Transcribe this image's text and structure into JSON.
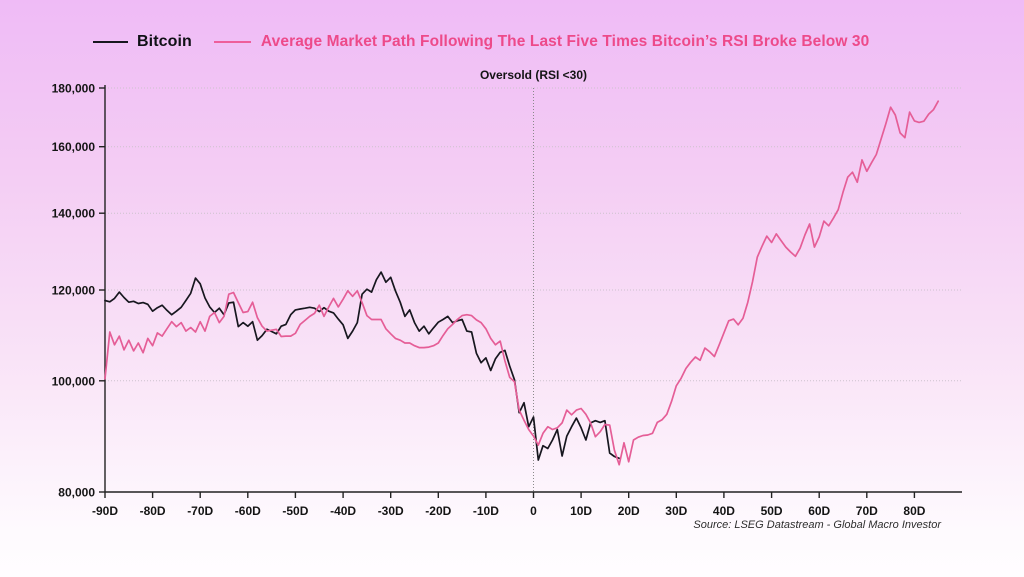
{
  "legend": {
    "bitcoin_label": "Bitcoin",
    "average_label": "Average Market Path Following The Last Five Times Bitcoin’s RSI Broke Below 30"
  },
  "chart_title": "Oversold (RSI <30)",
  "source": "Source: LSEG Datastream - Global Macro Investor",
  "colors": {
    "bitcoin_line": "#17171f",
    "average_line": "#e55e97",
    "legend_pink_text": "#ed4a8a",
    "grid": "#cdc2cd",
    "zero_line": "#8a8a8a",
    "axis": "#222222",
    "background_top": "#efbbf6",
    "background_bottom": "#fffdff"
  },
  "chart_data": {
    "type": "line",
    "title": "Oversold (RSI <30)",
    "legend_position": "top",
    "grid": "dotted-horizontal",
    "x_axis": {
      "min": -90,
      "max": 90,
      "unit": "days",
      "ticks": [
        {
          "d": -90,
          "label": "-90D"
        },
        {
          "d": -80,
          "label": "-80D"
        },
        {
          "d": -70,
          "label": "-70D"
        },
        {
          "d": -60,
          "label": "-60D"
        },
        {
          "d": -50,
          "label": "-50D"
        },
        {
          "d": -40,
          "label": "-40D"
        },
        {
          "d": -30,
          "label": "-30D"
        },
        {
          "d": -20,
          "label": "-20D"
        },
        {
          "d": -10,
          "label": "-10D"
        },
        {
          "d": 0,
          "label": "0"
        },
        {
          "d": 10,
          "label": "10D"
        },
        {
          "d": 20,
          "label": "20D"
        },
        {
          "d": 30,
          "label": "30D"
        },
        {
          "d": 40,
          "label": "40D"
        },
        {
          "d": 50,
          "label": "50D"
        },
        {
          "d": 60,
          "label": "60D"
        },
        {
          "d": 70,
          "label": "70D"
        },
        {
          "d": 80,
          "label": "80D"
        }
      ]
    },
    "y_axis": {
      "min": 80000,
      "max": 180000,
      "scale": "log",
      "ticks": [
        {
          "v": 80000,
          "label": "80,000"
        },
        {
          "v": 100000,
          "label": "100,000"
        },
        {
          "v": 120000,
          "label": "120,000"
        },
        {
          "v": 140000,
          "label": "140,000"
        },
        {
          "v": 160000,
          "label": "160,000"
        },
        {
          "v": 180000,
          "label": "180,000"
        }
      ]
    },
    "annotation_vline_day": 0,
    "series": [
      {
        "name": "Bitcoin",
        "color": "#17171f",
        "start_day": -90,
        "step_days": 1,
        "values": [
          117500,
          117200,
          118000,
          119500,
          118200,
          117100,
          117300,
          116800,
          117000,
          116600,
          115000,
          115800,
          116400,
          115200,
          114200,
          115000,
          115900,
          117500,
          119200,
          122900,
          121500,
          118100,
          116000,
          114700,
          115700,
          114200,
          116900,
          117100,
          111500,
          112400,
          111600,
          112600,
          108500,
          109500,
          110900,
          110400,
          109900,
          111600,
          112000,
          114200,
          115300,
          115500,
          115700,
          115900,
          115700,
          114900,
          115800,
          115000,
          114600,
          113200,
          111900,
          108900,
          110500,
          112400,
          119000,
          120200,
          119500,
          122500,
          124400,
          121900,
          123100,
          119800,
          117100,
          113800,
          115300,
          112400,
          110500,
          111600,
          109900,
          111200,
          112500,
          113100,
          113800,
          112400,
          112800,
          113100,
          110500,
          110300,
          105700,
          103700,
          104700,
          102100,
          104500,
          105900,
          106300,
          103000,
          100200,
          93800,
          95700,
          91200,
          93000,
          85300,
          87800,
          87300,
          88800,
          90700,
          86000,
          89500,
          91200,
          92800,
          91000,
          88800,
          91900,
          92300,
          92000,
          92300,
          86500,
          85900,
          85600
        ]
      },
      {
        "name": "Average Market Path Following The Last Five Times Bitcoin’s RSI Broke Below 30",
        "color": "#e55e97",
        "start_day": -90,
        "step_days": 1,
        "values": [
          100400,
          110300,
          107500,
          109400,
          106400,
          108500,
          106200,
          107900,
          105800,
          108900,
          107300,
          110100,
          109400,
          111000,
          112600,
          111500,
          112400,
          110500,
          111300,
          110300,
          112600,
          110500,
          113800,
          114700,
          112400,
          113800,
          119000,
          119400,
          117000,
          114700,
          114900,
          117100,
          113500,
          111600,
          110500,
          110700,
          110900,
          109300,
          109400,
          109400,
          110000,
          112000,
          112900,
          113800,
          114500,
          116400,
          113800,
          116000,
          118000,
          116000,
          117800,
          119800,
          118500,
          119800,
          117000,
          114000,
          113100,
          113100,
          113100,
          111000,
          109900,
          108900,
          108500,
          107900,
          107900,
          107300,
          106900,
          106900,
          107000,
          107300,
          107900,
          109500,
          111000,
          112000,
          113100,
          114000,
          114200,
          114000,
          113000,
          112400,
          111000,
          108900,
          107500,
          108300,
          104100,
          100700,
          99800,
          94300,
          92400,
          90700,
          89500,
          87900,
          90000,
          91200,
          90700,
          91000,
          91900,
          94300,
          93400,
          94300,
          94600,
          93500,
          91900,
          89400,
          90300,
          91600,
          91500,
          87000,
          84500,
          88300,
          85000,
          88800,
          89300,
          89600,
          89700,
          90000,
          92000,
          92500,
          93500,
          96000,
          99000,
          100500,
          102500,
          103800,
          104900,
          104200,
          106800,
          106000,
          105000,
          107500,
          110100,
          112800,
          113200,
          111900,
          113400,
          117100,
          122000,
          128200,
          131000,
          133700,
          132000,
          134300,
          132500,
          130800,
          129500,
          128400,
          130500,
          134000,
          137000,
          130800,
          133500,
          137800,
          136500,
          138600,
          141000,
          146000,
          150500,
          152000,
          149000,
          155800,
          152300,
          154900,
          157500,
          162500,
          167500,
          173200,
          170500,
          164500,
          162900,
          171500,
          168500,
          168000,
          168400,
          170800,
          172300,
          175300
        ]
      }
    ]
  }
}
